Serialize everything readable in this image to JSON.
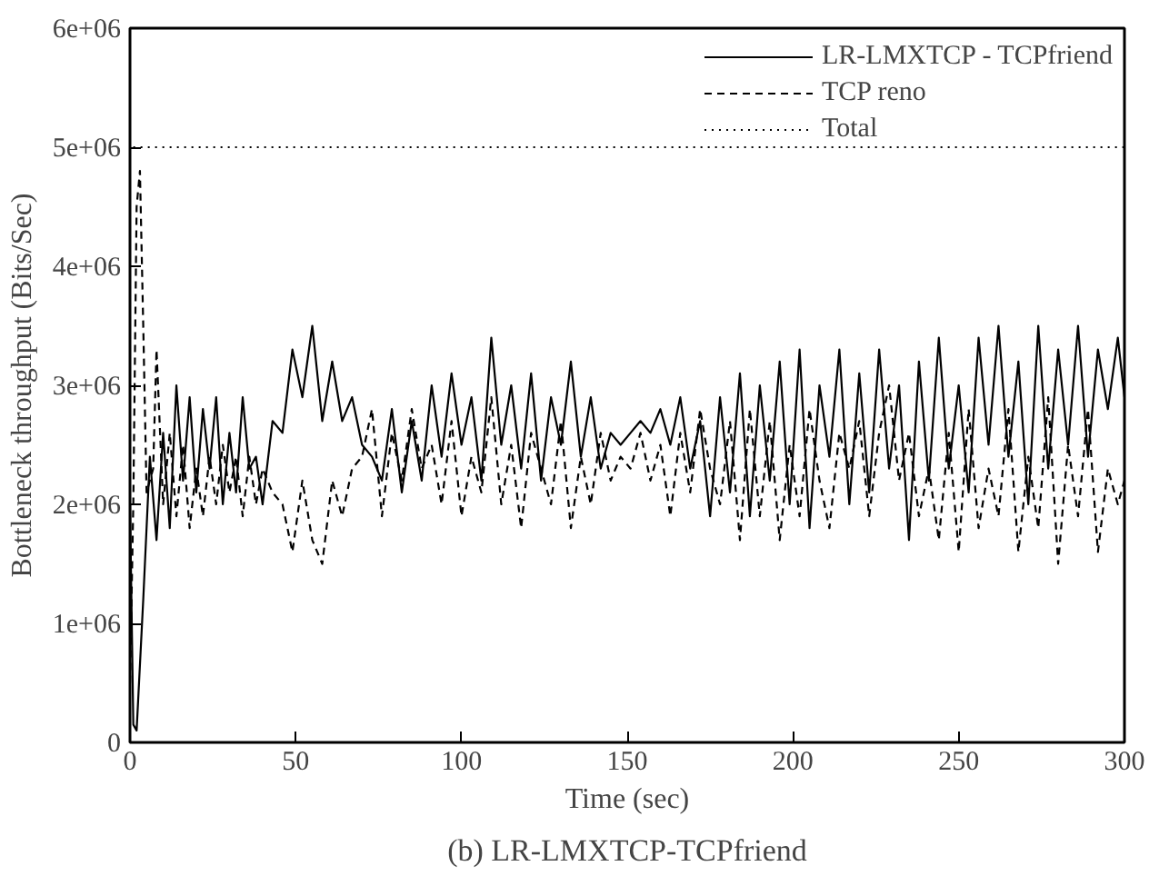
{
  "chart_data": {
    "type": "line",
    "title": "(b) LR-LMXTCP-TCPfriend",
    "xlabel": "Time (sec)",
    "ylabel": "Bottleneck throughput (Bits/Sec)",
    "xlim": [
      0,
      300
    ],
    "xticks": [
      0,
      50,
      100,
      150,
      200,
      250,
      300
    ],
    "ylim": [
      0,
      6000000
    ],
    "yticks": [
      0,
      {
        "value": 1000000,
        "label": "1e+06"
      },
      {
        "value": 2000000,
        "label": "2e+06"
      },
      {
        "value": 3000000,
        "label": "3e+06"
      },
      {
        "value": 4000000,
        "label": "4e+06"
      },
      {
        "value": 5000000,
        "label": "5e+06"
      },
      {
        "value": 6000000,
        "label": "6e+06"
      }
    ],
    "grid": false,
    "legend": "top right",
    "marker": "none",
    "series": [
      {
        "name": "LR-LMXTCP - TCPfriend",
        "color": "#000000",
        "line_style": "solid",
        "x": [
          0,
          1,
          2,
          4,
          6,
          8,
          10,
          12,
          14,
          16,
          18,
          20,
          22,
          24,
          26,
          28,
          30,
          32,
          34,
          36,
          38,
          40,
          43,
          46,
          49,
          52,
          55,
          58,
          61,
          64,
          67,
          70,
          73,
          76,
          79,
          82,
          85,
          88,
          91,
          94,
          97,
          100,
          103,
          106,
          109,
          112,
          115,
          118,
          121,
          124,
          127,
          130,
          133,
          136,
          139,
          142,
          145,
          148,
          151,
          154,
          157,
          160,
          163,
          166,
          169,
          172,
          175,
          178,
          181,
          184,
          187,
          190,
          193,
          196,
          199,
          202,
          205,
          208,
          211,
          214,
          217,
          220,
          223,
          226,
          229,
          232,
          235,
          238,
          241,
          244,
          247,
          250,
          253,
          256,
          259,
          262,
          265,
          268,
          271,
          274,
          277,
          280,
          283,
          286,
          289,
          292,
          295,
          298,
          300
        ],
        "values": [
          2000000.0,
          150000.0,
          100000.0,
          1200000.0,
          2400000.0,
          1700000.0,
          2600000.0,
          1800000.0,
          3000000.0,
          2200000.0,
          2900000.0,
          2100000.0,
          2800000.0,
          2300000.0,
          2900000.0,
          2000000.0,
          2600000.0,
          2100000.0,
          2900000.0,
          2300000.0,
          2400000.0,
          2000000.0,
          2700000.0,
          2600000.0,
          3300000.0,
          2900000.0,
          3500000.0,
          2700000.0,
          3200000.0,
          2700000.0,
          2900000.0,
          2500000.0,
          2400000.0,
          2200000.0,
          2800000.0,
          2100000.0,
          2700000.0,
          2200000.0,
          3000000.0,
          2400000.0,
          3100000.0,
          2500000.0,
          2900000.0,
          2200000.0,
          3400000.0,
          2500000.0,
          3000000.0,
          2300000.0,
          3100000.0,
          2200000.0,
          2900000.0,
          2500000.0,
          3200000.0,
          2400000.0,
          2900000.0,
          2300000.0,
          2600000.0,
          2500000.0,
          2600000.0,
          2700000.0,
          2600000.0,
          2800000.0,
          2500000.0,
          2900000.0,
          2300000.0,
          2700000.0,
          1900000.0,
          2900000.0,
          2100000.0,
          3100000.0,
          1900000.0,
          3000000.0,
          2200000.0,
          3200000.0,
          2000000.0,
          3300000.0,
          1800000.0,
          3000000.0,
          2400000.0,
          3300000.0,
          2000000.0,
          3100000.0,
          2100000.0,
          3300000.0,
          2300000.0,
          3000000.0,
          1700000.0,
          3200000.0,
          2200000.0,
          3400000.0,
          2300000.0,
          3000000.0,
          2100000.0,
          3400000.0,
          2500000.0,
          3500000.0,
          2400000.0,
          3200000.0,
          2000000.0,
          3500000.0,
          2300000.0,
          3300000.0,
          2500000.0,
          3500000.0,
          2400000.0,
          3300000.0,
          2800000.0,
          3400000.0,
          2900000.0
        ]
      },
      {
        "name": "TCP reno",
        "color": "#000000",
        "line_style": "dashed",
        "x": [
          0,
          1,
          2,
          3,
          4,
          5,
          7,
          8,
          10,
          12,
          14,
          16,
          18,
          20,
          22,
          24,
          26,
          28,
          30,
          32,
          34,
          36,
          38,
          40,
          43,
          46,
          49,
          52,
          55,
          58,
          61,
          64,
          67,
          70,
          73,
          76,
          79,
          82,
          85,
          88,
          91,
          94,
          97,
          100,
          103,
          106,
          109,
          112,
          115,
          118,
          121,
          124,
          127,
          130,
          133,
          136,
          139,
          142,
          145,
          148,
          151,
          154,
          157,
          160,
          163,
          166,
          169,
          172,
          175,
          178,
          181,
          184,
          187,
          190,
          193,
          196,
          199,
          202,
          205,
          208,
          211,
          214,
          217,
          220,
          223,
          226,
          229,
          232,
          235,
          238,
          241,
          244,
          247,
          250,
          253,
          256,
          259,
          262,
          265,
          268,
          271,
          274,
          277,
          280,
          283,
          286,
          289,
          292,
          295,
          298,
          300
        ],
        "values": [
          500000.0,
          2000000.0,
          4500000.0,
          4800000.0,
          3500000.0,
          2100000.0,
          2300000.0,
          3300000.0,
          2000000.0,
          2600000.0,
          1900000.0,
          2500000.0,
          1800000.0,
          2300000.0,
          1900000.0,
          2400000.0,
          2000000.0,
          2500000.0,
          2100000.0,
          2400000.0,
          1900000.0,
          2400000.0,
          2000000.0,
          2300000.0,
          2100000.0,
          2000000.0,
          1600000.0,
          2200000.0,
          1700000.0,
          1500000.0,
          2200000.0,
          1900000.0,
          2300000.0,
          2400000.0,
          2800000.0,
          1900000.0,
          2600000.0,
          2200000.0,
          2800000.0,
          2300000.0,
          2500000.0,
          2000000.0,
          2700000.0,
          1900000.0,
          2400000.0,
          2100000.0,
          2900000.0,
          2000000.0,
          2500000.0,
          1800000.0,
          2600000.0,
          2300000.0,
          2000000.0,
          2700000.0,
          1800000.0,
          2400000.0,
          2000000.0,
          2600000.0,
          2200000.0,
          2400000.0,
          2300000.0,
          2600000.0,
          2200000.0,
          2500000.0,
          1900000.0,
          2600000.0,
          2100000.0,
          2800000.0,
          2300000.0,
          2000000.0,
          2700000.0,
          1700000.0,
          2800000.0,
          1900000.0,
          2700000.0,
          1700000.0,
          2500000.0,
          1900000.0,
          2800000.0,
          2200000.0,
          1800000.0,
          2600000.0,
          2300000.0,
          2700000.0,
          1900000.0,
          2600000.0,
          3000000.0,
          2200000.0,
          2600000.0,
          1900000.0,
          2300000.0,
          1700000.0,
          2600000.0,
          1600000.0,
          2800000.0,
          1800000.0,
          2300000.0,
          1900000.0,
          2800000.0,
          1600000.0,
          2400000.0,
          1800000.0,
          2900000.0,
          1500000.0,
          2500000.0,
          1900000.0,
          2800000.0,
          1600000.0,
          2300000.0,
          2000000.0,
          2200000.0
        ]
      },
      {
        "name": "Total",
        "color": "#000000",
        "line_style": "dotted",
        "x": [
          1,
          300
        ],
        "values": [
          5000000,
          5000000
        ]
      }
    ]
  }
}
